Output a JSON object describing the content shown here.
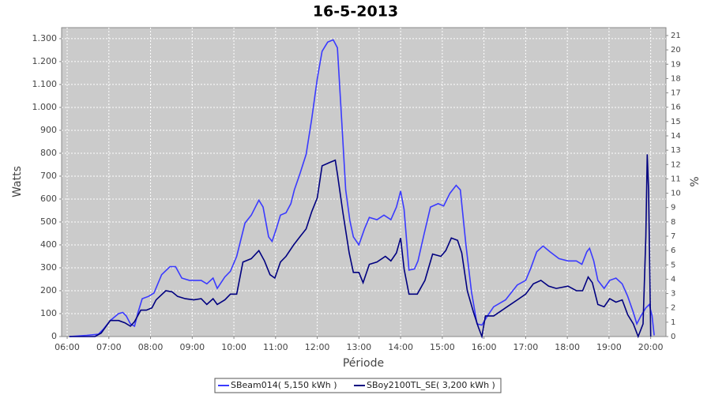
{
  "chart_data": {
    "type": "line",
    "title": "16-5-2013",
    "x_label": "Période",
    "y_label": "Watts",
    "y2_label": "%",
    "xlim": [
      "05:52",
      "20:22"
    ],
    "xticks": [
      "06:00",
      "07:00",
      "08:00",
      "09:00",
      "10:00",
      "11:00",
      "12:00",
      "13:00",
      "14:00",
      "15:00",
      "16:00",
      "17:00",
      "18:00",
      "19:00",
      "20:00"
    ],
    "ylim": [
      0,
      1348
    ],
    "yticks": [
      0,
      100,
      200,
      300,
      400,
      500,
      600,
      700,
      800,
      900,
      {
        "value": 1000,
        "label": "1.000"
      },
      {
        "value": 1100,
        "label": "1.100"
      },
      {
        "value": 1200,
        "label": "1.200"
      },
      {
        "value": 1300,
        "label": "1.300"
      }
    ],
    "y2lim": [
      0,
      21.55
    ],
    "y2ticks": [
      0,
      1,
      2,
      3,
      4,
      5,
      6,
      7,
      8,
      9,
      10,
      11,
      12,
      13,
      14,
      15,
      16,
      17,
      18,
      19,
      20,
      21
    ],
    "grid": true,
    "legend": "bottom",
    "series": [
      {
        "name": "SBeam014( 5,150 kWh )",
        "color": "#3a3aff",
        "x": [
          "06:03",
          "06:28",
          "06:45",
          "06:53",
          "07:02",
          "07:14",
          "07:20",
          "07:25",
          "07:31",
          "07:37",
          "07:42",
          "07:48",
          "07:57",
          "08:05",
          "08:16",
          "08:28",
          "08:36",
          "08:45",
          "08:56",
          "09:13",
          "09:21",
          "09:30",
          "09:36",
          "09:47",
          "09:55",
          "10:04",
          "10:16",
          "10:25",
          "10:36",
          "10:42",
          "10:50",
          "10:55",
          "11:01",
          "11:07",
          "11:15",
          "11:22",
          "11:27",
          "11:35",
          "11:44",
          "11:52",
          "12:00",
          "12:07",
          "12:15",
          "12:23",
          "12:29",
          "12:35",
          "12:41",
          "12:47",
          "12:52",
          "13:00",
          "13:08",
          "13:15",
          "13:26",
          "13:36",
          "13:46",
          "13:54",
          "14:00",
          "14:05",
          "14:12",
          "14:20",
          "14:25",
          "14:34",
          "14:43",
          "14:54",
          "15:02",
          "15:11",
          "15:20",
          "15:26",
          "15:34",
          "15:42",
          "15:50",
          "15:57",
          "16:05",
          "16:14",
          "16:31",
          "16:48",
          "17:00",
          "17:07",
          "17:16",
          "17:25",
          "17:35",
          "17:48",
          "18:01",
          "18:13",
          "18:21",
          "18:28",
          "18:32",
          "18:38",
          "18:44",
          "18:53",
          "19:01",
          "19:10",
          "19:19",
          "19:27",
          "19:35",
          "19:40",
          "19:46",
          "19:53",
          "19:58",
          "20:02",
          "20:05"
        ],
        "values": [
          0,
          5,
          10,
          35,
          70,
          100,
          105,
          90,
          55,
          45,
          105,
          165,
          175,
          190,
          270,
          305,
          305,
          255,
          245,
          245,
          230,
          255,
          210,
          260,
          285,
          350,
          495,
          530,
          595,
          565,
          435,
          415,
          470,
          530,
          540,
          580,
          640,
          710,
          795,
          950,
          1125,
          1245,
          1285,
          1295,
          1260,
          950,
          640,
          505,
          435,
          400,
          470,
          520,
          510,
          530,
          510,
          565,
          635,
          555,
          290,
          295,
          330,
          450,
          565,
          580,
          570,
          625,
          660,
          640,
          400,
          195,
          55,
          50,
          90,
          130,
          160,
          225,
          245,
          295,
          370,
          395,
          370,
          340,
          330,
          330,
          315,
          370,
          385,
          330,
          245,
          210,
          245,
          255,
          230,
          175,
          105,
          55,
          90,
          125,
          140,
          90,
          5
        ]
      },
      {
        "name": "SBoy2100TL_SE( 3,200 kWh )",
        "color": "#000080",
        "x": [
          "06:03",
          "06:40",
          "06:49",
          "07:02",
          "07:14",
          "07:23",
          "07:31",
          "07:37",
          "07:46",
          "07:54",
          "08:02",
          "08:08",
          "08:22",
          "08:31",
          "08:39",
          "08:50",
          "09:02",
          "09:13",
          "09:21",
          "09:30",
          "09:36",
          "09:47",
          "09:55",
          "10:04",
          "10:13",
          "10:25",
          "10:36",
          "10:44",
          "10:52",
          "10:59",
          "11:07",
          "11:15",
          "11:26",
          "11:35",
          "11:44",
          "11:52",
          "12:00",
          "12:07",
          "12:18",
          "12:26",
          "12:29",
          "12:37",
          "12:46",
          "12:52",
          "13:00",
          "13:06",
          "13:15",
          "13:26",
          "13:38",
          "13:46",
          "13:54",
          "14:00",
          "14:05",
          "14:12",
          "14:24",
          "14:35",
          "14:46",
          "14:58",
          "15:05",
          "15:13",
          "15:22",
          "15:28",
          "15:36",
          "15:45",
          "15:52",
          "15:57",
          "16:02",
          "16:14",
          "16:31",
          "16:48",
          "17:00",
          "17:11",
          "17:22",
          "17:33",
          "17:44",
          "18:01",
          "18:13",
          "18:22",
          "18:30",
          "18:36",
          "18:44",
          "18:53",
          "19:01",
          "19:10",
          "19:19",
          "19:27",
          "19:35",
          "19:42",
          "19:49",
          "19:53",
          "19:55",
          "19:57",
          "20:00"
        ],
        "values": [
          0,
          0,
          15,
          70,
          70,
          60,
          45,
          65,
          115,
          115,
          125,
          160,
          200,
          195,
          175,
          165,
          160,
          165,
          140,
          165,
          140,
          160,
          185,
          185,
          325,
          340,
          375,
          330,
          270,
          255,
          325,
          350,
          400,
          435,
          470,
          545,
          605,
          745,
          760,
          770,
          710,
          540,
          365,
          280,
          280,
          235,
          315,
          325,
          350,
          330,
          365,
          430,
          295,
          185,
          185,
          245,
          360,
          350,
          375,
          430,
          420,
          365,
          200,
          105,
          40,
          0,
          90,
          90,
          125,
          160,
          185,
          230,
          245,
          220,
          210,
          220,
          200,
          200,
          260,
          235,
          140,
          130,
          165,
          150,
          160,
          95,
          55,
          0,
          55,
          435,
          795,
          640,
          0
        ]
      }
    ]
  }
}
